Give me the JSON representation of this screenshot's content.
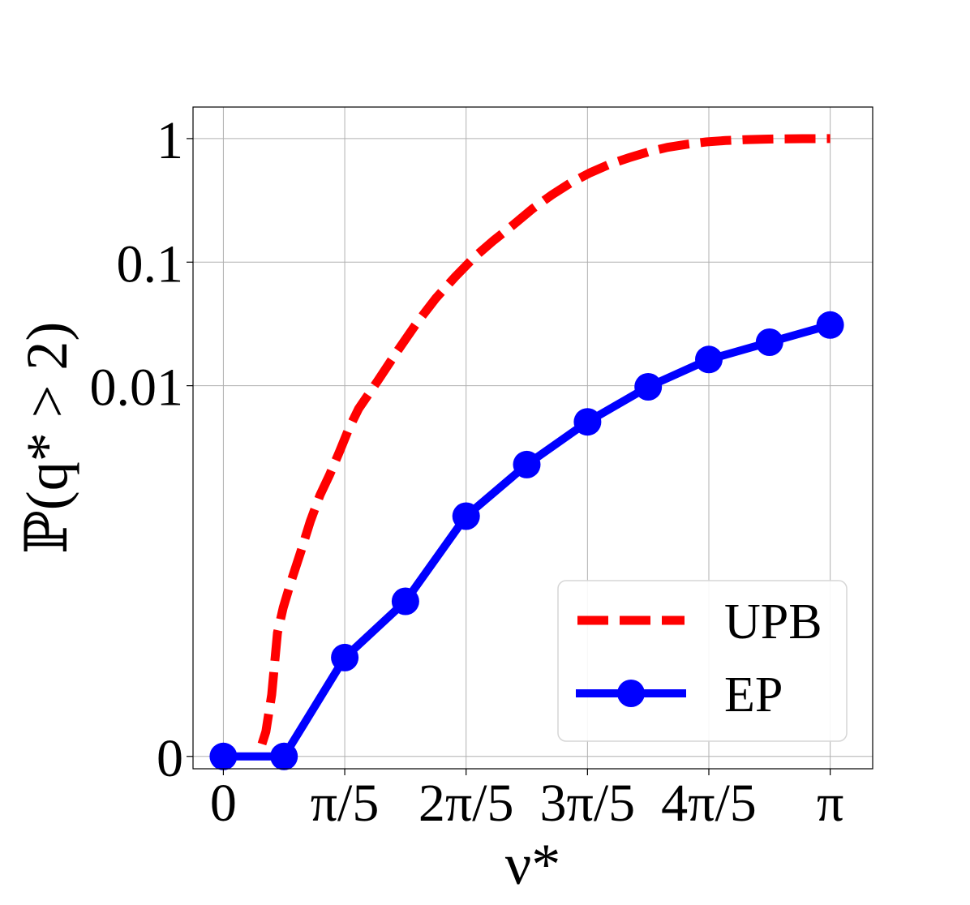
{
  "chart_data": {
    "type": "line",
    "xlabel": "ν*",
    "ylabel": "ℙ(q* > 2)",
    "xlim": [
      -0.1571,
      3.3615
    ],
    "x_ticks": [
      {
        "value": 0,
        "label": "0"
      },
      {
        "value": 0.6283,
        "label": "π/5"
      },
      {
        "value": 1.2566,
        "label": "2π/5"
      },
      {
        "value": 1.885,
        "label": "3π/5"
      },
      {
        "value": 2.5133,
        "label": "4π/5"
      },
      {
        "value": 3.1416,
        "label": "π"
      }
    ],
    "y_scale": "symlog",
    "y_linthresh": 0.0001,
    "ylim": [
      -1e-05,
      1.8
    ],
    "y_ticks": [
      {
        "value": 0,
        "label": "0"
      },
      {
        "value": 0.01,
        "label": "0.01"
      },
      {
        "value": 0.1,
        "label": "0.1"
      },
      {
        "value": 1,
        "label": "1"
      }
    ],
    "grid": true,
    "legend_position": "lower right",
    "series": [
      {
        "name": "UPB",
        "color": "#ff0000",
        "style": "dashed",
        "x": [
          0.2,
          0.22,
          0.25,
          0.28,
          0.31,
          0.35,
          0.4,
          0.45,
          0.5,
          0.55,
          0.6,
          0.65,
          0.7,
          0.8,
          0.9,
          1.0,
          1.1,
          1.2,
          1.3,
          1.4,
          1.5,
          1.6,
          1.7,
          1.8,
          1.9,
          2.0,
          2.1,
          2.2,
          2.3,
          2.4,
          2.5,
          2.6,
          2.7,
          2.8,
          2.9,
          3.0,
          3.1416
        ],
        "y": [
          1e-05,
          2e-05,
          5e-05,
          0.0001,
          0.00016,
          0.00026,
          0.00045,
          0.0008,
          0.0013,
          0.0019,
          0.0029,
          0.0045,
          0.0065,
          0.011,
          0.019,
          0.032,
          0.051,
          0.076,
          0.11,
          0.15,
          0.2,
          0.27,
          0.35,
          0.44,
          0.53,
          0.62,
          0.7,
          0.78,
          0.85,
          0.9,
          0.94,
          0.965,
          0.98,
          0.99,
          0.995,
          0.998,
          1.0
        ]
      },
      {
        "name": "EP",
        "color": "#0000ff",
        "style": "solid",
        "marker": "circle",
        "x": [
          0,
          0.3142,
          0.6283,
          0.9425,
          1.2566,
          1.5708,
          1.885,
          2.1991,
          2.5133,
          2.8274,
          3.1416
        ],
        "y": [
          0,
          0,
          8e-05,
          0.00018,
          0.00088,
          0.0023,
          0.0051,
          0.0098,
          0.0163,
          0.0225,
          0.031
        ]
      }
    ]
  }
}
